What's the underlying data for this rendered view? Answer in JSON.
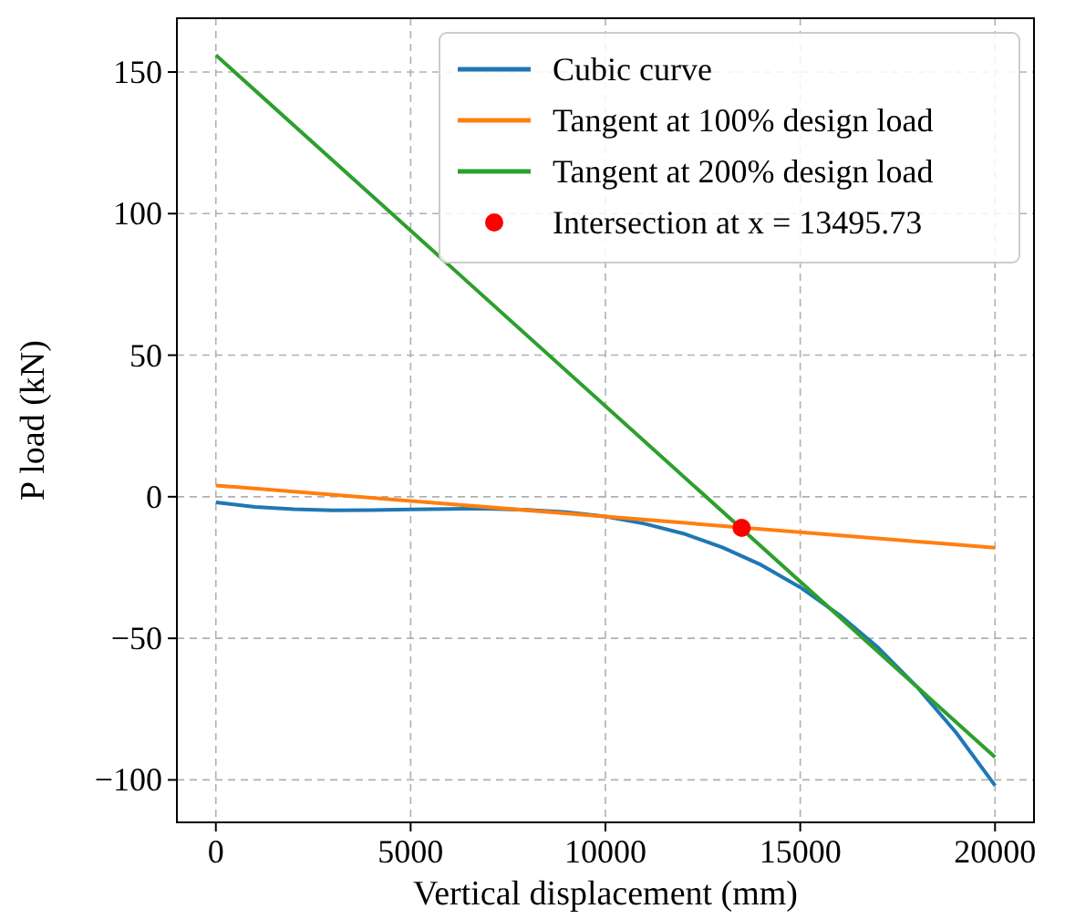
{
  "chart_data": {
    "type": "line",
    "xlabel": "Vertical displacement (mm)",
    "ylabel": "P load (kN)",
    "xlim": [
      -1000,
      21000
    ],
    "xticks": [
      0,
      5000,
      10000,
      15000,
      20000
    ],
    "ylim": [
      -115,
      169
    ],
    "yticks": [
      -100,
      -50,
      0,
      50,
      100,
      150
    ],
    "grid": true,
    "legend": "top right",
    "series": [
      {
        "name": "Cubic curve",
        "color": "#1f77b4",
        "x": [
          0,
          1000,
          2000,
          3000,
          4000,
          5000,
          6000,
          7000,
          8000,
          9000,
          10000,
          11000,
          12000,
          13000,
          14000,
          15000,
          16000,
          17000,
          18000,
          19000,
          20000
        ],
        "values": [
          -2,
          -3.6,
          -4.4,
          -4.8,
          -4.7,
          -4.5,
          -4.3,
          -4.2,
          -4.6,
          -5.4,
          -7,
          -9.5,
          -13,
          -17.9,
          -24.1,
          -32,
          -41.7,
          -53.3,
          -67.2,
          -83.3,
          -102
        ]
      },
      {
        "name": "Tangent at 100% design load",
        "color": "#ff7f0e",
        "x": [
          0,
          20000
        ],
        "values": [
          4,
          -18
        ]
      },
      {
        "name": "Tangent at 200% design load",
        "color": "#2ca02c",
        "x": [
          0,
          20000
        ],
        "values": [
          156,
          -92
        ]
      },
      {
        "name": "Intersection at x = 13495.73",
        "type": "scatter",
        "marker": "circle",
        "color": "#ff0000",
        "x": [
          13495.73
        ],
        "values": [
          -11
        ]
      }
    ]
  }
}
